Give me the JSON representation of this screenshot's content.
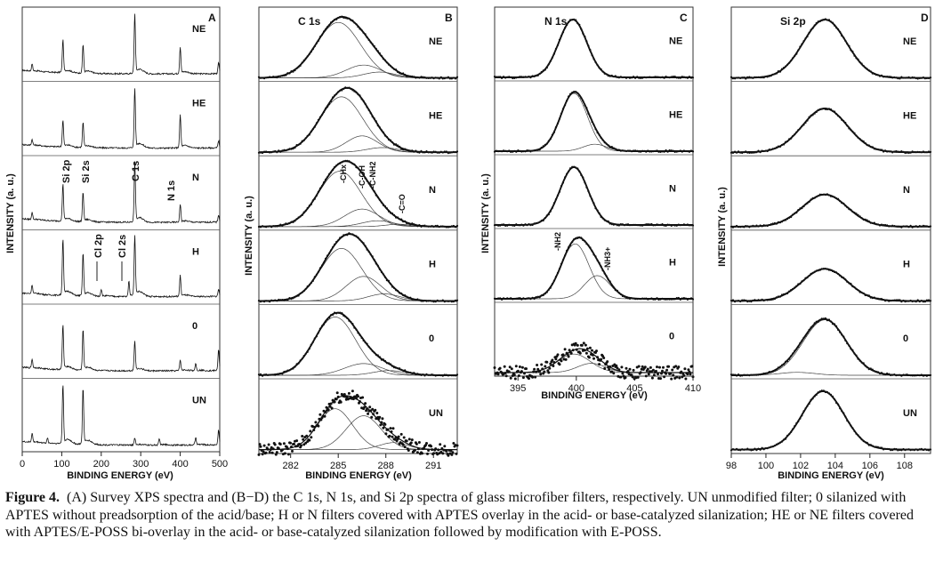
{
  "caption": {
    "label": "Figure 4.",
    "text": "(A) Survey XPS spectra and (B−D) the C 1s, N 1s, and Si 2p spectra of glass microfiber filters, respectively. UN unmodified filter; 0 silanized with APTES without preadsorption of the acid/base; H or N filters covered with APTES overlay in the acid- or base-catalyzed silanization; HE or NE filters covered with APTES/E-POSS bi-overlay in the acid- or base-catalyzed silanization followed by modification with E-POSS."
  },
  "chart_data": [
    {
      "type": "line",
      "panel": "A",
      "title": "",
      "xlabel": "BINDING ENERGY (eV)",
      "ylabel": "INTENSITY (a. u.)",
      "xlim": [
        0,
        500
      ],
      "xticks": [
        "0",
        "100",
        "200",
        "300",
        "400",
        "500"
      ],
      "series_order": [
        "NE",
        "HE",
        "N",
        "H",
        "0",
        "UN"
      ],
      "peak_labels": [
        "Si 2p",
        "Si 2s",
        "C 1s",
        "N 1s",
        "Cl 2p",
        "Cl 2s"
      ],
      "peaks": {
        "Si 2p": 103,
        "Si 2s": 154,
        "C 1s": 285,
        "N 1s": 400,
        "Cl 2p": 200,
        "Cl 2s": 270,
        "O 2s": 25,
        "Na 2s": 64,
        "Ca 2p": 347,
        "K 2p": 294,
        "Ca 2s": 439,
        "Na": 497
      },
      "series": [
        {
          "name": "NE",
          "peaks": [
            {
              "x": 25,
              "h": 0.12
            },
            {
              "x": 103,
              "h": 0.55
            },
            {
              "x": 154,
              "h": 0.48
            },
            {
              "x": 285,
              "h": 1.0
            },
            {
              "x": 400,
              "h": 0.45
            },
            {
              "x": 497,
              "h": 0.18
            }
          ]
        },
        {
          "name": "HE",
          "peaks": [
            {
              "x": 25,
              "h": 0.1
            },
            {
              "x": 103,
              "h": 0.45
            },
            {
              "x": 154,
              "h": 0.42
            },
            {
              "x": 285,
              "h": 1.0
            },
            {
              "x": 400,
              "h": 0.55
            },
            {
              "x": 497,
              "h": 0.12
            }
          ]
        },
        {
          "name": "N",
          "peaks": [
            {
              "x": 25,
              "h": 0.12
            },
            {
              "x": 103,
              "h": 0.62
            },
            {
              "x": 154,
              "h": 0.5
            },
            {
              "x": 285,
              "h": 1.0
            },
            {
              "x": 400,
              "h": 0.3
            },
            {
              "x": 497,
              "h": 0.12
            }
          ]
        },
        {
          "name": "H",
          "peaks": [
            {
              "x": 25,
              "h": 0.15
            },
            {
              "x": 103,
              "h": 0.95
            },
            {
              "x": 154,
              "h": 0.72
            },
            {
              "x": 200,
              "h": 0.12
            },
            {
              "x": 270,
              "h": 0.25
            },
            {
              "x": 285,
              "h": 1.0
            },
            {
              "x": 400,
              "h": 0.35
            },
            {
              "x": 497,
              "h": 0.12
            }
          ]
        },
        {
          "name": "0",
          "peaks": [
            {
              "x": 25,
              "h": 0.15
            },
            {
              "x": 103,
              "h": 0.75
            },
            {
              "x": 154,
              "h": 0.68
            },
            {
              "x": 285,
              "h": 0.5
            },
            {
              "x": 400,
              "h": 0.18
            },
            {
              "x": 439,
              "h": 0.12
            },
            {
              "x": 497,
              "h": 0.35
            }
          ]
        },
        {
          "name": "UN",
          "peaks": [
            {
              "x": 25,
              "h": 0.15
            },
            {
              "x": 64,
              "h": 0.08
            },
            {
              "x": 103,
              "h": 1.0
            },
            {
              "x": 154,
              "h": 0.95
            },
            {
              "x": 285,
              "h": 0.12
            },
            {
              "x": 347,
              "h": 0.1
            },
            {
              "x": 439,
              "h": 0.12
            },
            {
              "x": 497,
              "h": 0.25
            }
          ]
        }
      ]
    },
    {
      "type": "line",
      "panel": "B",
      "title": "C 1s",
      "xlabel": "BINDING ENERGY (eV)",
      "ylabel": "INTENSITY (a. u.)",
      "xlim": [
        280,
        292.5
      ],
      "xticks": [
        "282",
        "285",
        "288",
        "291"
      ],
      "component_labels": [
        "-CHx",
        "-C-OH",
        "-C-NH2",
        "-C=O"
      ],
      "series_order": [
        "NE",
        "HE",
        "N",
        "H",
        "0",
        "UN"
      ],
      "series": [
        {
          "name": "NE",
          "components": [
            {
              "c": 285.0,
              "w": 1.4,
              "a": 0.95
            },
            {
              "c": 286.6,
              "w": 1.1,
              "a": 0.22
            },
            {
              "c": 287.6,
              "w": 1.0,
              "a": 0.1
            }
          ]
        },
        {
          "name": "HE",
          "components": [
            {
              "c": 285.2,
              "w": 1.35,
              "a": 0.95
            },
            {
              "c": 286.5,
              "w": 1.0,
              "a": 0.28
            },
            {
              "c": 287.8,
              "w": 1.0,
              "a": 0.08
            }
          ]
        },
        {
          "name": "N",
          "components": [
            {
              "c": 285.1,
              "w": 1.35,
              "a": 0.95
            },
            {
              "c": 286.5,
              "w": 1.1,
              "a": 0.3
            },
            {
              "c": 287.5,
              "w": 1.0,
              "a": 0.1
            },
            {
              "c": 288.8,
              "w": 0.8,
              "a": 0.04
            }
          ]
        },
        {
          "name": "H",
          "components": [
            {
              "c": 285.2,
              "w": 1.3,
              "a": 0.9
            },
            {
              "c": 286.6,
              "w": 1.1,
              "a": 0.42
            },
            {
              "c": 287.9,
              "w": 1.0,
              "a": 0.12
            }
          ]
        },
        {
          "name": "0",
          "components": [
            {
              "c": 284.8,
              "w": 1.3,
              "a": 1.0
            },
            {
              "c": 286.6,
              "w": 1.2,
              "a": 0.2
            },
            {
              "c": 288.2,
              "w": 1.0,
              "a": 0.08
            }
          ]
        },
        {
          "name": "UN",
          "noisy": true,
          "components": [
            {
              "c": 284.8,
              "w": 1.1,
              "a": 0.7
            },
            {
              "c": 286.6,
              "w": 1.1,
              "a": 0.58
            },
            {
              "c": 288.5,
              "w": 0.9,
              "a": 0.12
            }
          ]
        }
      ]
    },
    {
      "type": "line",
      "panel": "C",
      "title": "N 1s",
      "xlabel": "BINDING ENERGY (eV)",
      "ylabel": "INTENSITY (a. u.)",
      "xlim": [
        393,
        410
      ],
      "xticks": [
        "395",
        "400",
        "405",
        "410"
      ],
      "component_labels": [
        "-NH2",
        "-NH3+"
      ],
      "series_order": [
        "NE",
        "HE",
        "N",
        "H",
        "0"
      ],
      "series": [
        {
          "name": "NE",
          "components": [
            {
              "c": 399.7,
              "w": 1.2,
              "a": 1.0
            }
          ]
        },
        {
          "name": "HE",
          "components": [
            {
              "c": 399.8,
              "w": 1.15,
              "a": 1.0
            },
            {
              "c": 401.6,
              "w": 1.0,
              "a": 0.12
            }
          ]
        },
        {
          "name": "N",
          "components": [
            {
              "c": 399.8,
              "w": 1.2,
              "a": 1.0
            }
          ]
        },
        {
          "name": "H",
          "components": [
            {
              "c": 399.9,
              "w": 1.2,
              "a": 0.95
            },
            {
              "c": 401.8,
              "w": 1.1,
              "a": 0.4
            }
          ]
        },
        {
          "name": "0",
          "noisy": true,
          "components": [
            {
              "c": 399.8,
              "w": 1.4,
              "a": 0.32
            },
            {
              "c": 401.3,
              "w": 1.2,
              "a": 0.16
            }
          ]
        }
      ]
    },
    {
      "type": "line",
      "panel": "D",
      "title": "Si 2p",
      "xlabel": "BINDING ENERGY (eV)",
      "ylabel": "INTENSITY (a. u.)",
      "xlim": [
        98,
        109.5
      ],
      "xticks": [
        "98",
        "100",
        "102",
        "104",
        "106",
        "108"
      ],
      "series_order": [
        "NE",
        "HE",
        "N",
        "H",
        "0",
        "UN"
      ],
      "series": [
        {
          "name": "NE",
          "components": [
            {
              "c": 103.4,
              "w": 1.25,
              "a": 1.0
            }
          ]
        },
        {
          "name": "HE",
          "components": [
            {
              "c": 103.4,
              "w": 1.3,
              "a": 0.75
            }
          ]
        },
        {
          "name": "N",
          "components": [
            {
              "c": 103.4,
              "w": 1.3,
              "a": 0.55
            }
          ]
        },
        {
          "name": "H",
          "components": [
            {
              "c": 103.4,
              "w": 1.3,
              "a": 0.55
            }
          ]
        },
        {
          "name": "0",
          "components": [
            {
              "c": 103.4,
              "w": 1.25,
              "a": 0.95
            },
            {
              "c": 101.8,
              "w": 1.0,
              "a": 0.05
            }
          ]
        },
        {
          "name": "UN",
          "components": [
            {
              "c": 103.3,
              "w": 1.2,
              "a": 1.0
            }
          ]
        }
      ]
    }
  ]
}
